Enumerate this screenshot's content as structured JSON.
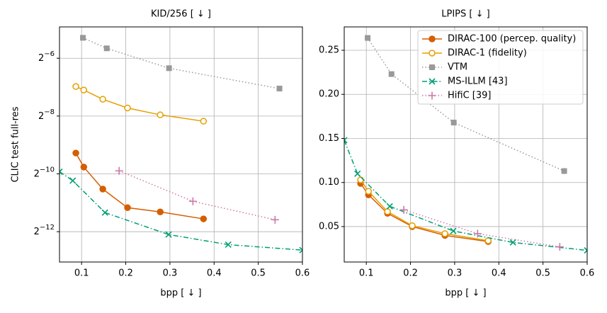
{
  "chart_data": [
    {
      "type": "line",
      "title": "KID/256 [ ↓ ]",
      "xlabel": "bpp [ ↓ ]",
      "ylabel": "CLIC test full-res",
      "yscale": "log",
      "grid": true,
      "xlim": [
        0.05,
        0.6
      ],
      "xticks": [
        0.1,
        0.2,
        0.3,
        0.4,
        0.5,
        0.6
      ],
      "ylim": [
        0.000118,
        0.0331
      ],
      "yticks": [
        {
          "value": 0.015625,
          "label": "2−6"
        },
        {
          "value": 0.00390625,
          "label": "2−8"
        },
        {
          "value": 0.0009765625,
          "label": "2−10"
        },
        {
          "value": 0.000244140625,
          "label": "2−12"
        }
      ],
      "series": [
        {
          "color": "#d55e00",
          "marker": "o",
          "fill": true,
          "linestyle": "solid",
          "x": [
            0.087,
            0.105,
            0.148,
            0.204,
            0.278,
            0.376
          ],
          "values": [
            0.00161,
            0.00115,
            0.000678,
            0.000434,
            0.000392,
            0.000332
          ]
        },
        {
          "color": "#e69f00",
          "marker": "o",
          "fill": false,
          "linestyle": "solid",
          "x": [
            0.087,
            0.105,
            0.148,
            0.204,
            0.278,
            0.376
          ],
          "values": [
            0.00793,
            0.00729,
            0.00584,
            0.00474,
            0.00402,
            0.00345
          ]
        },
        {
          "color": "#999999",
          "marker": "s",
          "fill": true,
          "linestyle": "dotted",
          "x": [
            0.103,
            0.157,
            0.298,
            0.548
          ],
          "values": [
            0.0255,
            0.0198,
            0.0123,
            0.00755
          ]
        },
        {
          "color": "#009e73",
          "marker": "x",
          "fill": true,
          "linestyle": "dashdot",
          "x": [
            0.05,
            0.08,
            0.153,
            0.297,
            0.432,
            0.6
          ],
          "values": [
            0.00103,
            0.00083,
            0.000386,
            0.000228,
            0.000179,
            0.000157
          ]
        },
        {
          "color": "#cc79a7",
          "marker": "+",
          "fill": true,
          "linestyle": "dotted",
          "x": [
            0.185,
            0.352,
            0.538
          ],
          "values": [
            0.00105,
            0.000506,
            0.000325
          ]
        }
      ]
    },
    {
      "type": "line",
      "title": "LPIPS [ ↓ ]",
      "xlabel": "bpp [ ↓ ]",
      "grid": true,
      "legend": "upper right",
      "xlim": [
        0.05,
        0.6
      ],
      "xticks": [
        0.1,
        0.2,
        0.3,
        0.4,
        0.5,
        0.6
      ],
      "ylim": [
        0.0098,
        0.2765
      ],
      "yticks": [
        0.05,
        {
          "value": 0.1,
          "label": "0.10"
        },
        0.15,
        {
          "value": 0.2,
          "label": "0.20"
        },
        0.25
      ],
      "series": [
        {
          "name": "DIRAC-100 (percep. quality)",
          "color": "#d55e00",
          "marker": "o",
          "fill": true,
          "linestyle": "solid",
          "x": [
            0.087,
            0.105,
            0.148,
            0.204,
            0.278,
            0.376
          ],
          "values": [
            0.099,
            0.086,
            0.065,
            0.05,
            0.04,
            0.033
          ]
        },
        {
          "name": "DIRAC-1 (fidelity)",
          "color": "#e69f00",
          "marker": "o",
          "fill": false,
          "linestyle": "solid",
          "x": [
            0.087,
            0.105,
            0.148,
            0.204,
            0.278,
            0.376
          ],
          "values": [
            0.103,
            0.09,
            0.067,
            0.051,
            0.042,
            0.034
          ]
        },
        {
          "name": "VTM",
          "color": "#999999",
          "marker": "s",
          "fill": true,
          "linestyle": "dotted",
          "x": [
            0.103,
            0.157,
            0.298,
            0.548
          ],
          "values": [
            0.264,
            0.223,
            0.168,
            0.113
          ]
        },
        {
          "name": "MS-ILLM [43]",
          "color": "#009e73",
          "marker": "x",
          "fill": true,
          "linestyle": "dashdot",
          "x": [
            0.05,
            0.08,
            0.153,
            0.297,
            0.432,
            0.6
          ],
          "values": [
            0.148,
            0.11,
            0.073,
            0.045,
            0.032,
            0.023
          ]
        },
        {
          "name": "HifiC [39]",
          "color": "#cc79a7",
          "marker": "+",
          "fill": true,
          "linestyle": "dotted",
          "x": [
            0.185,
            0.352,
            0.538
          ],
          "values": [
            0.069,
            0.042,
            0.027
          ]
        }
      ]
    }
  ]
}
